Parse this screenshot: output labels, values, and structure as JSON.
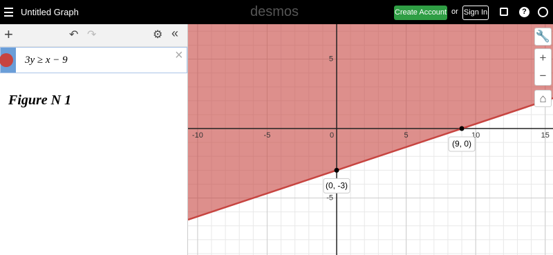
{
  "header": {
    "title": "Untitled Graph",
    "logo": "desmos",
    "create_account": "Create Account",
    "or": "or",
    "sign_in": "Sign In"
  },
  "expression": {
    "latex_text": "3y ≥ x − 9"
  },
  "figure_label": "Figure N 1",
  "graph": {
    "xlim": [
      -10.69,
      15.56
    ],
    "ylim": [
      -9.1,
      7.51
    ],
    "xticks": [
      -10,
      -5,
      0,
      5,
      10,
      15
    ],
    "yticks": [
      5,
      -5
    ],
    "color": "#c74440",
    "points": [
      {
        "x": 0,
        "y": -3,
        "label": "(0, -3)"
      },
      {
        "x": 9,
        "y": 0,
        "label": "(9, 0)"
      }
    ]
  }
}
